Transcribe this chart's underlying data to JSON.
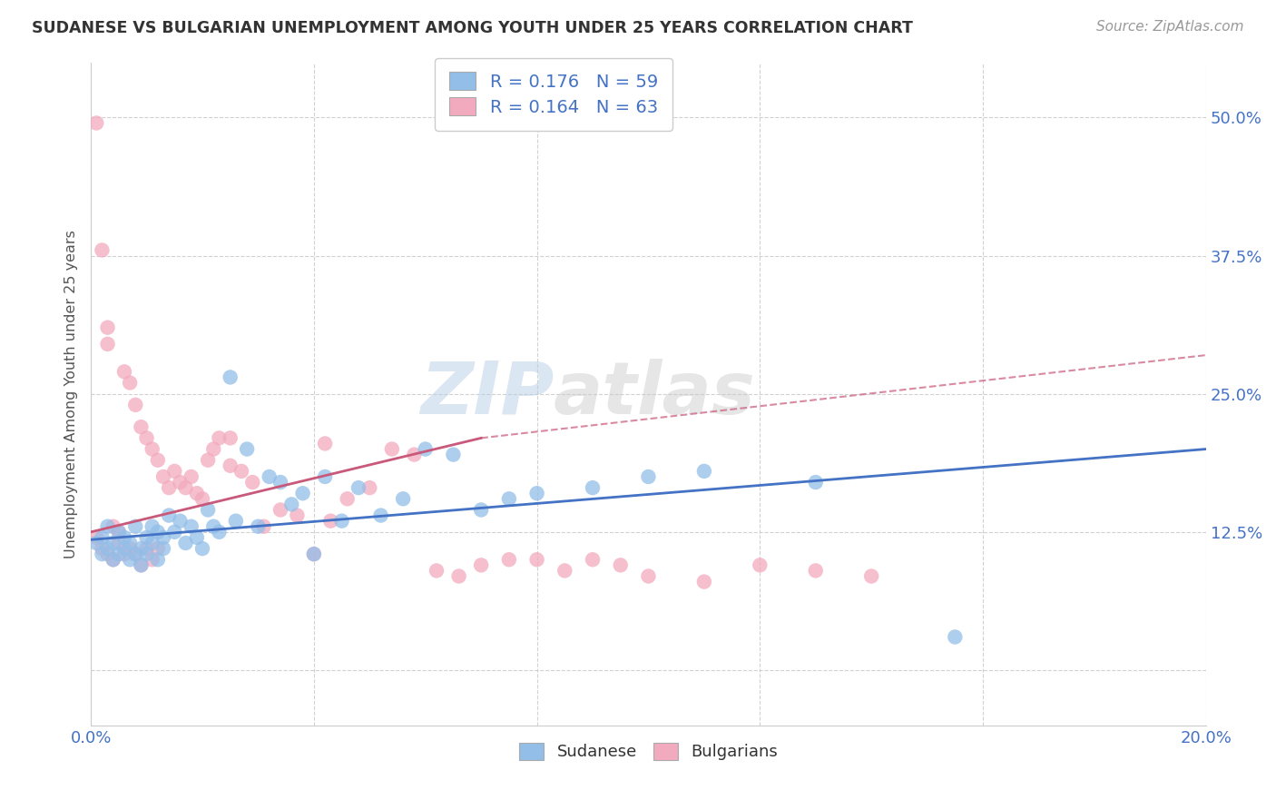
{
  "title": "SUDANESE VS BULGARIAN UNEMPLOYMENT AMONG YOUTH UNDER 25 YEARS CORRELATION CHART",
  "source": "Source: ZipAtlas.com",
  "ylabel": "Unemployment Among Youth under 25 years",
  "xlim": [
    0.0,
    0.2
  ],
  "ylim": [
    -0.05,
    0.55
  ],
  "xticks": [
    0.0,
    0.04,
    0.08,
    0.12,
    0.16,
    0.2
  ],
  "ytick_positions": [
    0.0,
    0.125,
    0.25,
    0.375,
    0.5
  ],
  "ytick_labels": [
    "",
    "12.5%",
    "25.0%",
    "37.5%",
    "50.0%"
  ],
  "r_sudanese": 0.176,
  "n_sudanese": 59,
  "r_bulgarians": 0.164,
  "n_bulgarians": 63,
  "watermark_zip": "ZIP",
  "watermark_atlas": "atlas",
  "blue_color": "#92BEE8",
  "pink_color": "#F2AABE",
  "line_blue": "#4472C4",
  "line_pink": "#C9597A",
  "sudanese_x": [
    0.001,
    0.002,
    0.002,
    0.003,
    0.003,
    0.004,
    0.004,
    0.005,
    0.005,
    0.006,
    0.006,
    0.007,
    0.007,
    0.008,
    0.008,
    0.009,
    0.009,
    0.01,
    0.01,
    0.011,
    0.011,
    0.012,
    0.012,
    0.013,
    0.013,
    0.014,
    0.015,
    0.016,
    0.017,
    0.018,
    0.019,
    0.02,
    0.021,
    0.022,
    0.023,
    0.025,
    0.026,
    0.028,
    0.03,
    0.032,
    0.034,
    0.036,
    0.038,
    0.04,
    0.042,
    0.045,
    0.048,
    0.052,
    0.056,
    0.06,
    0.065,
    0.07,
    0.075,
    0.08,
    0.09,
    0.1,
    0.11,
    0.13,
    0.155
  ],
  "sudanese_y": [
    0.115,
    0.105,
    0.12,
    0.11,
    0.13,
    0.1,
    0.115,
    0.105,
    0.125,
    0.11,
    0.12,
    0.1,
    0.115,
    0.105,
    0.13,
    0.11,
    0.095,
    0.12,
    0.105,
    0.115,
    0.13,
    0.1,
    0.125,
    0.11,
    0.12,
    0.14,
    0.125,
    0.135,
    0.115,
    0.13,
    0.12,
    0.11,
    0.145,
    0.13,
    0.125,
    0.265,
    0.135,
    0.2,
    0.13,
    0.175,
    0.17,
    0.15,
    0.16,
    0.105,
    0.175,
    0.135,
    0.165,
    0.14,
    0.155,
    0.2,
    0.195,
    0.145,
    0.155,
    0.16,
    0.165,
    0.175,
    0.18,
    0.17,
    0.03
  ],
  "bulgarians_x": [
    0.001,
    0.001,
    0.002,
    0.002,
    0.003,
    0.003,
    0.004,
    0.004,
    0.005,
    0.005,
    0.006,
    0.006,
    0.007,
    0.007,
    0.008,
    0.008,
    0.009,
    0.009,
    0.01,
    0.01,
    0.011,
    0.011,
    0.012,
    0.012,
    0.013,
    0.014,
    0.015,
    0.016,
    0.017,
    0.018,
    0.019,
    0.02,
    0.021,
    0.022,
    0.023,
    0.025,
    0.027,
    0.029,
    0.031,
    0.034,
    0.037,
    0.04,
    0.043,
    0.046,
    0.05,
    0.054,
    0.058,
    0.062,
    0.066,
    0.07,
    0.075,
    0.08,
    0.085,
    0.09,
    0.095,
    0.1,
    0.11,
    0.12,
    0.13,
    0.14,
    0.003,
    0.025,
    0.042
  ],
  "bulgarians_y": [
    0.495,
    0.12,
    0.38,
    0.11,
    0.31,
    0.105,
    0.13,
    0.1,
    0.125,
    0.115,
    0.27,
    0.105,
    0.26,
    0.11,
    0.24,
    0.105,
    0.22,
    0.095,
    0.21,
    0.11,
    0.2,
    0.1,
    0.19,
    0.11,
    0.175,
    0.165,
    0.18,
    0.17,
    0.165,
    0.175,
    0.16,
    0.155,
    0.19,
    0.2,
    0.21,
    0.185,
    0.18,
    0.17,
    0.13,
    0.145,
    0.14,
    0.105,
    0.135,
    0.155,
    0.165,
    0.2,
    0.195,
    0.09,
    0.085,
    0.095,
    0.1,
    0.1,
    0.09,
    0.1,
    0.095,
    0.085,
    0.08,
    0.095,
    0.09,
    0.085,
    0.295,
    0.21,
    0.205
  ]
}
